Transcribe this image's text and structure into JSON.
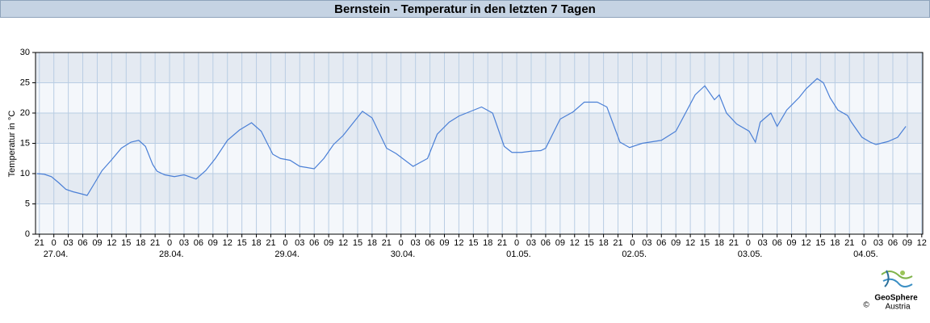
{
  "chart_data": {
    "type": "line",
    "title": "Bernstein - Temperatur in den letzten 7 Tagen",
    "ylabel": "Temperatur in °C",
    "ylim": [
      0,
      30
    ],
    "yticks": [
      0,
      5,
      10,
      15,
      20,
      25,
      30
    ],
    "xlim": [
      -3.8,
      180.2
    ],
    "xticks": [
      {
        "value": -3,
        "label": "21"
      },
      {
        "value": 0,
        "label": "0"
      },
      {
        "value": 3,
        "label": "03"
      },
      {
        "value": 6,
        "label": "06"
      },
      {
        "value": 9,
        "label": "09"
      },
      {
        "value": 12,
        "label": "12"
      },
      {
        "value": 15,
        "label": "15"
      },
      {
        "value": 18,
        "label": "18"
      },
      {
        "value": 21,
        "label": "21"
      },
      {
        "value": 24,
        "label": "0"
      },
      {
        "value": 27,
        "label": "03"
      },
      {
        "value": 30,
        "label": "06"
      },
      {
        "value": 33,
        "label": "09"
      },
      {
        "value": 36,
        "label": "12"
      },
      {
        "value": 39,
        "label": "15"
      },
      {
        "value": 42,
        "label": "18"
      },
      {
        "value": 45,
        "label": "21"
      },
      {
        "value": 48,
        "label": "0"
      },
      {
        "value": 51,
        "label": "03"
      },
      {
        "value": 54,
        "label": "06"
      },
      {
        "value": 57,
        "label": "09"
      },
      {
        "value": 60,
        "label": "12"
      },
      {
        "value": 63,
        "label": "15"
      },
      {
        "value": 66,
        "label": "18"
      },
      {
        "value": 69,
        "label": "21"
      },
      {
        "value": 72,
        "label": "0"
      },
      {
        "value": 75,
        "label": "03"
      },
      {
        "value": 78,
        "label": "06"
      },
      {
        "value": 81,
        "label": "09"
      },
      {
        "value": 84,
        "label": "12"
      },
      {
        "value": 87,
        "label": "15"
      },
      {
        "value": 90,
        "label": "18"
      },
      {
        "value": 93,
        "label": "21"
      },
      {
        "value": 96,
        "label": "0"
      },
      {
        "value": 99,
        "label": "03"
      },
      {
        "value": 102,
        "label": "06"
      },
      {
        "value": 105,
        "label": "09"
      },
      {
        "value": 108,
        "label": "12"
      },
      {
        "value": 111,
        "label": "15"
      },
      {
        "value": 114,
        "label": "18"
      },
      {
        "value": 117,
        "label": "21"
      },
      {
        "value": 120,
        "label": "0"
      },
      {
        "value": 123,
        "label": "03"
      },
      {
        "value": 126,
        "label": "06"
      },
      {
        "value": 129,
        "label": "09"
      },
      {
        "value": 132,
        "label": "12"
      },
      {
        "value": 135,
        "label": "15"
      },
      {
        "value": 138,
        "label": "18"
      },
      {
        "value": 141,
        "label": "21"
      },
      {
        "value": 144,
        "label": "0"
      },
      {
        "value": 147,
        "label": "03"
      },
      {
        "value": 150,
        "label": "06"
      },
      {
        "value": 153,
        "label": "09"
      },
      {
        "value": 156,
        "label": "12"
      },
      {
        "value": 159,
        "label": "15"
      },
      {
        "value": 162,
        "label": "18"
      },
      {
        "value": 165,
        "label": "21"
      },
      {
        "value": 168,
        "label": "0"
      },
      {
        "value": 171,
        "label": "03"
      },
      {
        "value": 174,
        "label": "06"
      },
      {
        "value": 177,
        "label": "09"
      },
      {
        "value": 180,
        "label": "12"
      }
    ],
    "date_labels": [
      {
        "value": 0,
        "label": "27.04."
      },
      {
        "value": 24,
        "label": "28.04."
      },
      {
        "value": 48,
        "label": "29.04."
      },
      {
        "value": 72,
        "label": "30.04."
      },
      {
        "value": 96,
        "label": "01.05."
      },
      {
        "value": 120,
        "label": "02.05."
      },
      {
        "value": 144,
        "label": "03.05."
      },
      {
        "value": 168,
        "label": "04.05."
      }
    ],
    "grid": true,
    "band_colors": [
      "#f4f7fb",
      "#e4eaf2"
    ],
    "x": [
      -3.5,
      -2,
      -0.5,
      1,
      2.5,
      4,
      5.5,
      6.9,
      8.5,
      10,
      12,
      14,
      16,
      17.6,
      19,
      20.5,
      21.4,
      23,
      25,
      27,
      29.5,
      31.5,
      33.5,
      36,
      38.5,
      41,
      43,
      45.4,
      47,
      49,
      51,
      54,
      56,
      58,
      60,
      62,
      64,
      66,
      69,
      71,
      74.5,
      77.5,
      79.5,
      82,
      84,
      86.5,
      88.7,
      91,
      93.4,
      95,
      97,
      99,
      101,
      102,
      105,
      107.7,
      110,
      112.7,
      114.7,
      117.4,
      119.4,
      122,
      126,
      129,
      131,
      133,
      135,
      137,
      138,
      139.5,
      141.6,
      144.2,
      145.5,
      146.5,
      148.7,
      150,
      152,
      154.6,
      156,
      158.3,
      159.6,
      161,
      162.6,
      164.6,
      165.4,
      167.6,
      169.3,
      170.5,
      173,
      175,
      176.7
    ],
    "series": [
      {
        "color": "#4a7fd6",
        "values": [
          10,
          9.9,
          9.5,
          8.5,
          7.4,
          7.0,
          6.7,
          6.4,
          8.5,
          10.5,
          12.3,
          14.2,
          15.2,
          15.5,
          14.5,
          11.5,
          10.4,
          9.8,
          9.5,
          9.8,
          9.1,
          10.5,
          12.5,
          15.5,
          17.2,
          18.4,
          17,
          13.2,
          12.5,
          12.2,
          11.2,
          10.8,
          12.5,
          14.8,
          16.3,
          18.3,
          20.3,
          19.2,
          14.2,
          13.3,
          11.2,
          12.5,
          16.5,
          18.5,
          19.5,
          20.3,
          21,
          20,
          14.5,
          13.5,
          13.5,
          13.7,
          13.8,
          14.2,
          19,
          20.2,
          21.8,
          21.8,
          21,
          15.2,
          14.3,
          15,
          15.5,
          17,
          20,
          23,
          24.5,
          22.2,
          23,
          20,
          18.2,
          17,
          15.2,
          18.5,
          20,
          17.8,
          20.5,
          22.6,
          24,
          25.7,
          25,
          22.5,
          20.5,
          19.6,
          18.5,
          16,
          15.2,
          14.8,
          15.3,
          16,
          17.8
        ]
      }
    ]
  },
  "logo": {
    "name": "GeoSphere",
    "country": "Austria",
    "copyright": "©"
  }
}
